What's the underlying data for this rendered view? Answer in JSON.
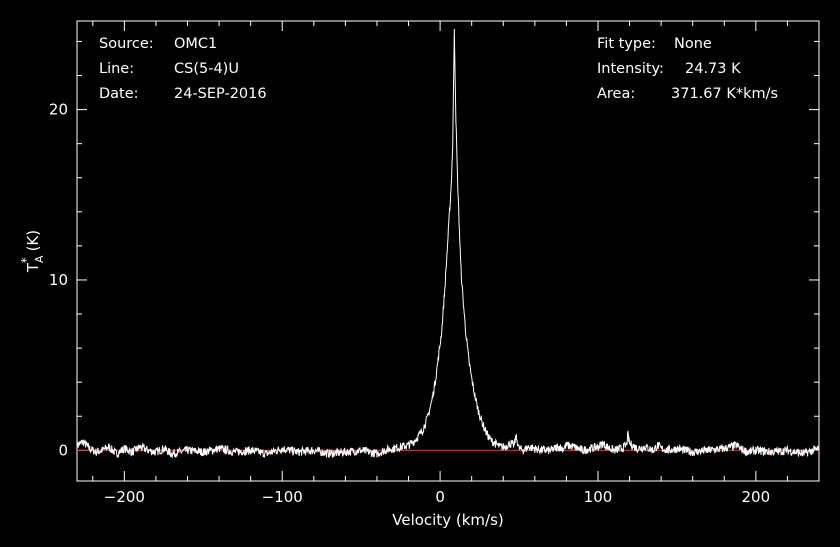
{
  "info_left": [
    {
      "label": "Source:",
      "value": "OMC1"
    },
    {
      "label": "Line:",
      "value": "CS(5-4)U"
    },
    {
      "label": "Date:",
      "value": "24-SEP-2016"
    }
  ],
  "info_right": [
    {
      "label": "Fit type:",
      "value": "None"
    },
    {
      "label": "Intensity:",
      "value": "24.73 K"
    },
    {
      "label": "Area:",
      "value": "371.67 K*km/s"
    }
  ],
  "chart_data": {
    "type": "line",
    "xlabel": "Velocity (km/s)",
    "ylabel_main": "T",
    "ylabel_sup": "*",
    "ylabel_sub": "A",
    "ylabel_unit": "(K)",
    "xlim": [
      -230,
      240
    ],
    "ylim": [
      -1.8,
      25.2
    ],
    "xticks": [
      -200,
      -100,
      0,
      100,
      200
    ],
    "xtick_labels": [
      "−200",
      "−100",
      "0",
      "100",
      "200"
    ],
    "yticks": [
      0,
      10,
      20
    ],
    "ytick_labels": [
      "0",
      "10",
      "20"
    ],
    "grid": false,
    "baseline": 0,
    "series": [
      {
        "color": "#ffffff",
        "x": [
          -230,
          -226,
          -222,
          -218,
          -214,
          -210,
          -205,
          -200,
          -195,
          -190,
          -185,
          -180,
          -175,
          -170,
          -160,
          -150,
          -140,
          -130,
          -120,
          -110,
          -100,
          -90,
          -80,
          -70,
          -60,
          -50,
          -45,
          -40,
          -35,
          -30,
          -25,
          -20,
          -17,
          -14,
          -11,
          -8,
          -5,
          -3,
          -1,
          1,
          3,
          4,
          5,
          6,
          7,
          8,
          9,
          10,
          11,
          12,
          13,
          14,
          16,
          18,
          20,
          22,
          24,
          26,
          28,
          30,
          32,
          35,
          38,
          41,
          44,
          47,
          48,
          49,
          50,
          53,
          56,
          60,
          65,
          70,
          75,
          78,
          80,
          85,
          90,
          95,
          100,
          103,
          106,
          110,
          115,
          118,
          119,
          120,
          125,
          130,
          135,
          138,
          140,
          145,
          150,
          160,
          170,
          180,
          188,
          190,
          195,
          200,
          210,
          220,
          230,
          240
        ],
        "y": [
          0.3,
          0.5,
          0.1,
          -0.1,
          0.0,
          0.2,
          -0.2,
          0.1,
          -0.1,
          0.2,
          0.0,
          -0.1,
          0.1,
          -0.2,
          0.0,
          -0.1,
          0.1,
          -0.1,
          0.0,
          -0.2,
          0.1,
          -0.1,
          0.0,
          -0.2,
          -0.1,
          0.0,
          -0.1,
          -0.2,
          0.0,
          0.1,
          0.2,
          0.3,
          0.5,
          0.8,
          1.2,
          1.9,
          3.0,
          4.1,
          5.5,
          7.0,
          9.5,
          11.0,
          12.5,
          14.0,
          15.5,
          18.0,
          24.73,
          19.5,
          16.0,
          13.5,
          11.0,
          9.5,
          7.2,
          5.4,
          4.2,
          3.2,
          2.4,
          1.8,
          1.3,
          0.9,
          0.6,
          0.4,
          0.2,
          0.2,
          0.4,
          0.3,
          0.8,
          0.5,
          0.1,
          0.0,
          0.2,
          0.1,
          0.0,
          0.0,
          0.2,
          0.1,
          0.3,
          0.2,
          0.0,
          0.1,
          0.2,
          0.4,
          0.2,
          0.0,
          0.1,
          0.3,
          0.9,
          0.4,
          0.1,
          0.2,
          0.0,
          0.3,
          0.1,
          0.0,
          0.1,
          -0.1,
          0.0,
          0.1,
          0.3,
          0.1,
          -0.1,
          0.0,
          -0.1,
          0.0,
          -0.2,
          0.1
        ]
      }
    ],
    "baseline_color": "#ff2222",
    "axis_color": "#ffffff",
    "background": "#000000"
  }
}
